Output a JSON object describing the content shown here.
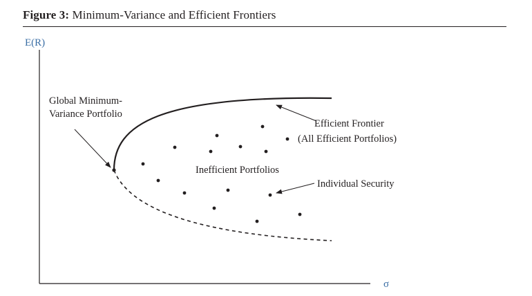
{
  "figure": {
    "number_label": "Figure 3:",
    "title": "Minimum-Variance and Efficient Frontiers"
  },
  "axes": {
    "y_label": "E(R)",
    "x_label": "σ",
    "label_color": "#3a6ea5"
  },
  "labels": {
    "gmv_line1": "Global Minimum-",
    "gmv_line2": "Variance Portfolio",
    "efficient_line1": "Efficient Frontier",
    "efficient_line2": "(All Efficient Portfolios)",
    "inefficient": "Inefficient Portfolios",
    "individual": "Individual Security"
  },
  "curves": {
    "efficient_frontier": "solid",
    "inefficient_frontier": "dashed"
  },
  "colors": {
    "ink": "#231f20",
    "axis_label": "#3a6ea5"
  }
}
